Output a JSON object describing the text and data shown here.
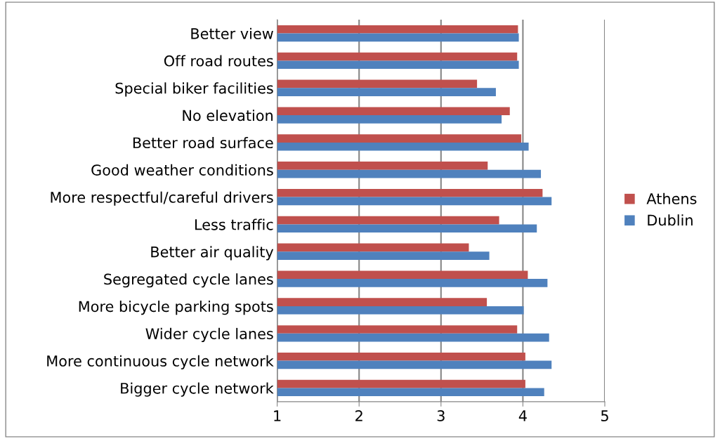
{
  "chart_data": {
    "type": "bar",
    "orientation": "horizontal",
    "categories": [
      "Better view",
      "Off road routes",
      "Special biker facilities",
      "No elevation",
      "Better road surface",
      "Good weather conditions",
      "More respectful/careful drivers",
      "Less traffic",
      "Better air quality",
      "Segregated cycle lanes",
      "More bicycle parking spots",
      "Wider cycle lanes",
      "More continuous cycle network",
      "Bigger cycle network"
    ],
    "series": [
      {
        "name": "Athens",
        "color": "#c0504d",
        "values": [
          3.94,
          3.93,
          3.44,
          3.84,
          3.98,
          3.57,
          4.24,
          3.71,
          3.34,
          4.06,
          3.56,
          3.93,
          4.03,
          4.03
        ]
      },
      {
        "name": "Dublin",
        "color": "#4f81bd",
        "values": [
          3.95,
          3.95,
          3.67,
          3.74,
          4.07,
          4.22,
          4.35,
          4.17,
          3.59,
          4.3,
          4.01,
          4.32,
          4.35,
          4.26
        ]
      }
    ],
    "xlim": [
      1,
      5
    ],
    "xticks": [
      1,
      2,
      3,
      4,
      5
    ],
    "grid": "x",
    "legend": "right"
  }
}
